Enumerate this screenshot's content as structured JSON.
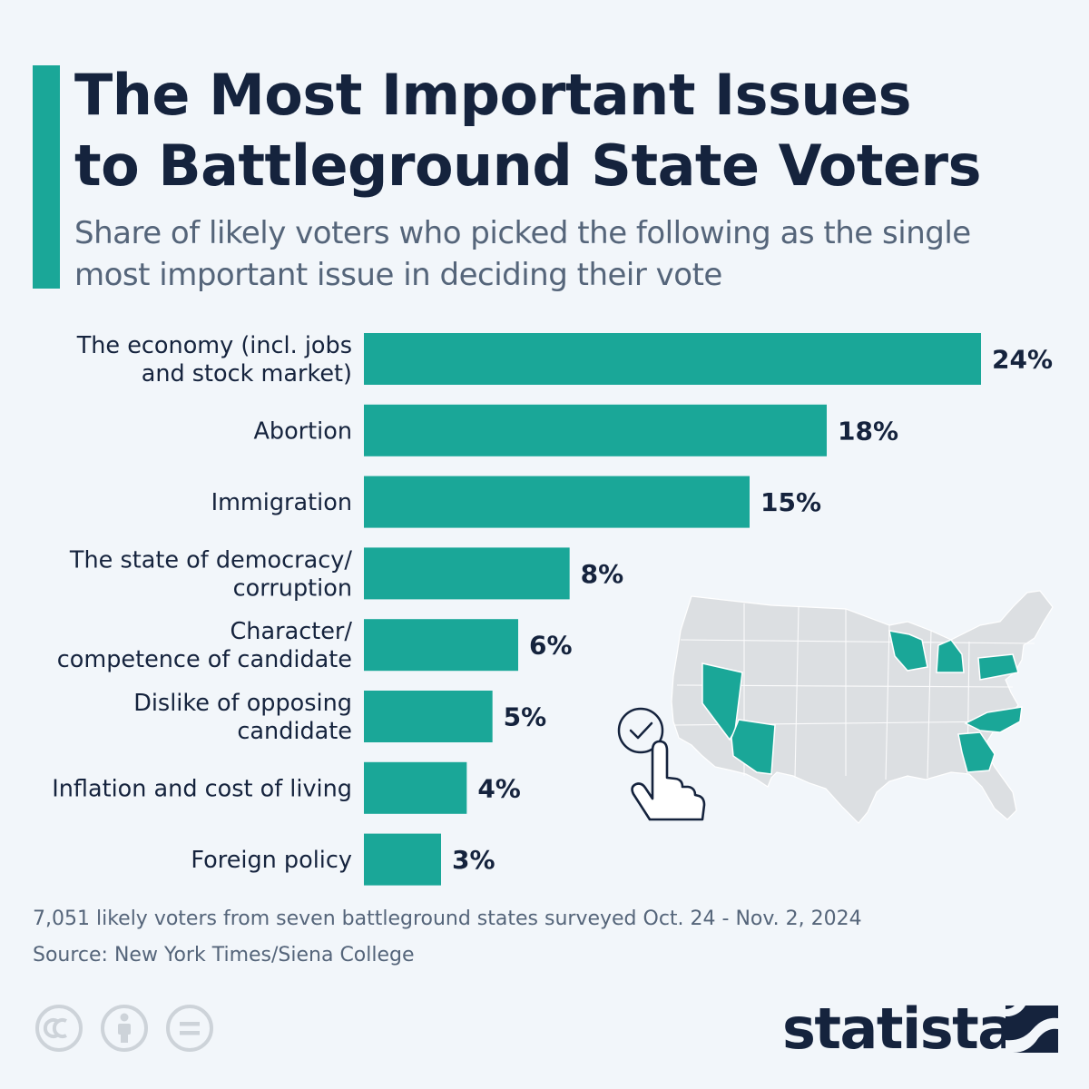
{
  "header": {
    "title_line1": "The Most Important Issues",
    "title_line2": "to Battleground State Voters",
    "subtitle_line1": "Share of likely voters who picked the following as the single",
    "subtitle_line2": "most important issue in deciding their vote"
  },
  "colors": {
    "accent": "#1aa798",
    "title": "#15233d",
    "subtitle": "#55657a",
    "map_gray": "#dcdfe2",
    "background": "#f2f6fa"
  },
  "chart_data": {
    "type": "bar",
    "orientation": "horizontal",
    "title": "The Most Important Issues to Battleground State Voters",
    "subtitle": "Share of likely voters who picked the following as the single most important issue in deciding their vote",
    "categories": [
      [
        "The economy (incl. jobs",
        "and stock market)"
      ],
      [
        "Abortion"
      ],
      [
        "Immigration"
      ],
      [
        "The state of democracy/",
        "corruption"
      ],
      [
        "Character/",
        "competence of candidate"
      ],
      [
        "Dislike of opposing",
        "candidate"
      ],
      [
        "Inflation and cost of living"
      ],
      [
        "Foreign policy"
      ]
    ],
    "values": [
      24,
      18,
      15,
      8,
      6,
      5,
      4,
      3
    ],
    "value_labels": [
      "24%",
      "18%",
      "15%",
      "8%",
      "6%",
      "5%",
      "4%",
      "3%"
    ],
    "unit": "%",
    "grid": false,
    "legend": "none"
  },
  "map": {
    "icon": "us-map-battleground-states",
    "pointer_icon": "hand-pointer-check-icon"
  },
  "footer": {
    "note": "7,051 likely voters from seven battleground states surveyed Oct. 24 - Nov. 2, 2024",
    "source": "Source: New York Times/Siena College",
    "license_icons": [
      "cc-icon",
      "attribution-icon",
      "no-derivatives-icon"
    ],
    "brand": "statista"
  }
}
